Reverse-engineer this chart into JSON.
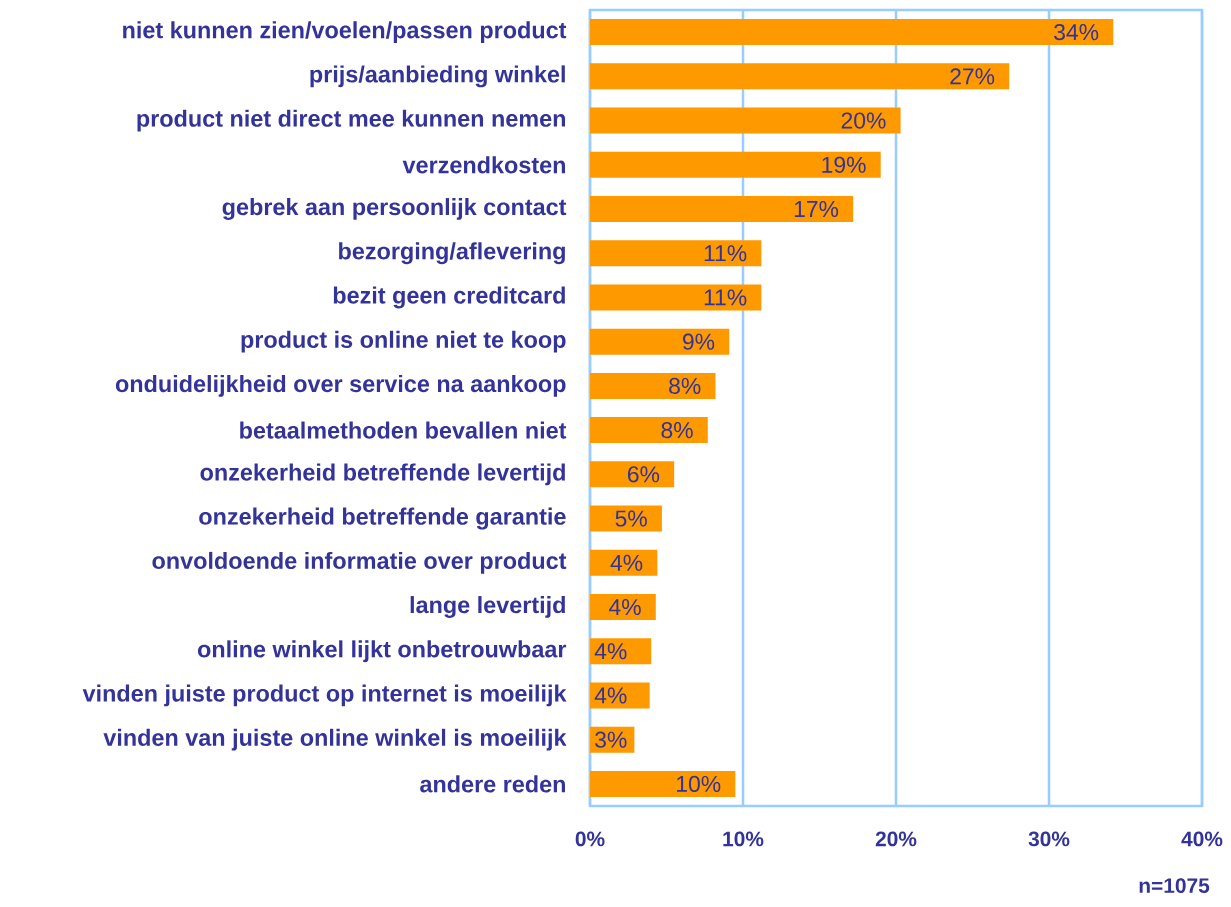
{
  "chart_data": {
    "type": "bar",
    "orientation": "horizontal",
    "categories": [
      "niet kunnen zien/voelen/passen product",
      "prijs/aanbieding winkel",
      "product niet direct mee kunnen nemen",
      "verzendkosten",
      "gebrek aan persoonlijk contact",
      "bezorging/aflevering",
      "bezit geen creditcard",
      "product is online niet te koop",
      "onduidelijkheid over service na aankoop",
      "betaalmethoden bevallen niet",
      "onzekerheid betreffende levertijd",
      "onzekerheid betreffende garantie",
      "onvoldoende informatie over product",
      "lange levertijd",
      "online winkel lijkt onbetrouwbaar",
      "vinden juiste product op internet is moeilijk",
      "vinden van juiste online winkel is moeilijk",
      "andere reden"
    ],
    "values": [
      34.2,
      27.4,
      20.3,
      19.0,
      17.2,
      11.2,
      11.2,
      9.1,
      8.2,
      7.7,
      5.5,
      4.7,
      4.4,
      4.3,
      4.0,
      3.9,
      2.9,
      9.5
    ],
    "value_labels": [
      "34%",
      "27%",
      "20%",
      "19%",
      "17%",
      "11%",
      "11%",
      "9%",
      "8%",
      "8%",
      "6%",
      "5%",
      "4%",
      "4%",
      "4%",
      "4%",
      "3%",
      "10%"
    ],
    "color": "#ff9900",
    "xlim": [
      0,
      40
    ],
    "xticks": [
      {
        "value": 0,
        "label": "0%"
      },
      {
        "value": 10,
        "label": "10%"
      },
      {
        "value": 20,
        "label": "20%"
      },
      {
        "value": 30,
        "label": "30%"
      },
      {
        "value": 40,
        "label": "40%"
      }
    ],
    "grid": "x",
    "annotations": [
      "n=1075"
    ]
  }
}
